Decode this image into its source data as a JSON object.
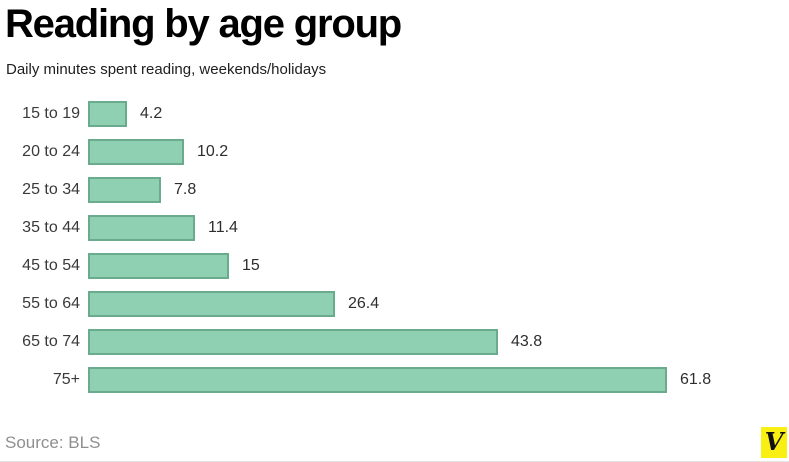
{
  "header": {
    "title": "Reading by age group",
    "subtitle": "Daily minutes spent reading, weekends/holidays"
  },
  "chart_data": {
    "type": "bar",
    "orientation": "horizontal",
    "title": "Reading by age group",
    "subtitle": "Daily minutes spent reading, weekends/holidays",
    "categories": [
      "15 to 19",
      "20 to 24",
      "25 to 34",
      "35 to 44",
      "45 to 54",
      "55 to 64",
      "65 to 74",
      "75+"
    ],
    "values": [
      4.2,
      10.2,
      7.8,
      11.4,
      15,
      26.4,
      43.8,
      61.8
    ],
    "value_labels": [
      "4.2",
      "10.2",
      "7.8",
      "11.4",
      "15",
      "26.4",
      "43.8",
      "61.8"
    ],
    "xlabel": "",
    "ylabel": "",
    "xlim": [
      0,
      65
    ],
    "grid": false,
    "legend": false,
    "data_labels": true,
    "bar_color": "#8ed0b1",
    "bar_border_color": "#6aab8d"
  },
  "footer": {
    "source": "Source: BLS",
    "logo_letter": "V",
    "logo_background": "#f9ef13"
  }
}
